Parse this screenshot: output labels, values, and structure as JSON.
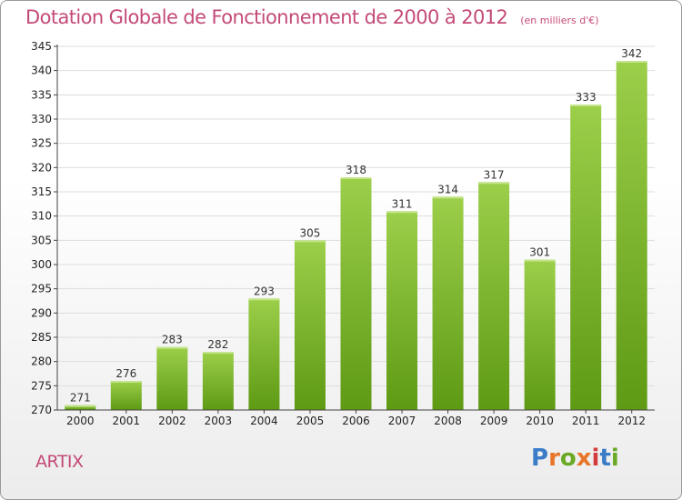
{
  "page": {
    "title": "Dotation Globale de Fonctionnement de 2000 à 2012",
    "subtitle": "(en milliers d'€)",
    "commune": "ARTIX",
    "logo_text": "Proxiti"
  },
  "colors": {
    "title": "#c44a78",
    "bar_light": "#9ccf4a",
    "bar_dark": "#5e9a14",
    "grid": "#dddddd",
    "axis": "#444444",
    "logo": [
      "#3a7cc7",
      "#e8762a",
      "#6aa925",
      "#e8762a",
      "#d23c3c",
      "#3a7cc7",
      "#6aa925"
    ]
  },
  "chart_data": {
    "type": "bar",
    "title": "Dotation Globale de Fonctionnement de 2000 à 2012",
    "subtitle": "(en milliers d'€)",
    "categories": [
      "2000",
      "2001",
      "2002",
      "2003",
      "2004",
      "2005",
      "2006",
      "2007",
      "2008",
      "2009",
      "2010",
      "2011",
      "2012"
    ],
    "values": [
      271,
      276,
      283,
      282,
      293,
      305,
      318,
      311,
      314,
      317,
      301,
      333,
      342
    ],
    "xlabel": "",
    "ylabel": "",
    "ylim": [
      270,
      345
    ],
    "yticks": [
      270,
      275,
      280,
      285,
      290,
      295,
      300,
      305,
      310,
      315,
      320,
      325,
      330,
      335,
      340,
      345
    ],
    "grid": true,
    "legend": "none"
  }
}
